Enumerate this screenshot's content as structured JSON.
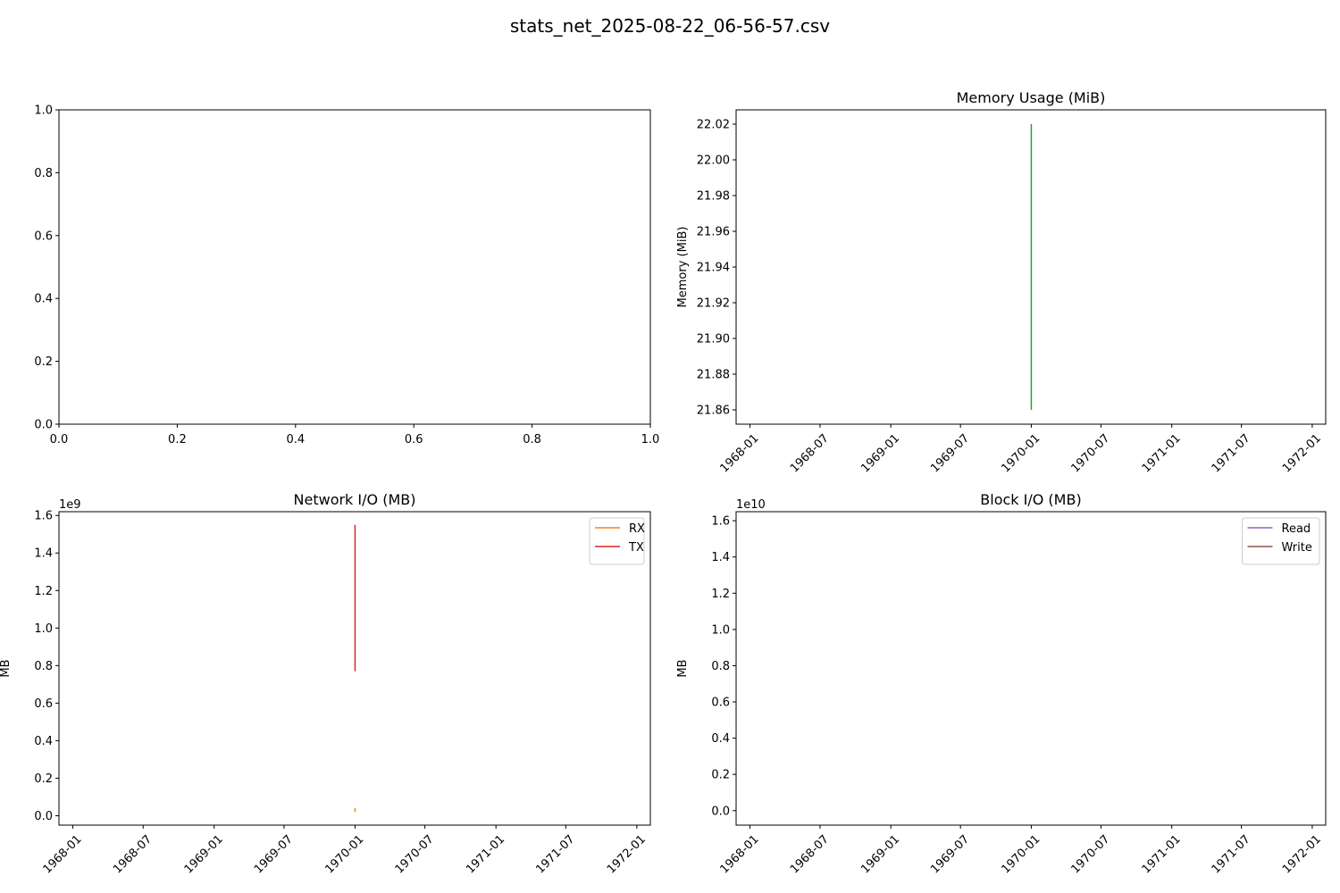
{
  "figure": {
    "suptitle": "stats_net_2025-08-22_06-56-57.csv"
  },
  "chart_data": [
    {
      "type": "line",
      "title": "",
      "xlabel": "",
      "ylabel": "",
      "xlim": [
        0,
        1
      ],
      "ylim": [
        0,
        1
      ],
      "x_ticks": [
        0.0,
        0.2,
        0.4,
        0.6,
        0.8,
        1.0
      ],
      "x_tick_labels": [
        "0.0",
        "0.2",
        "0.4",
        "0.6",
        "0.8",
        "1.0"
      ],
      "y_ticks": [
        0.0,
        0.2,
        0.4,
        0.6,
        0.8,
        1.0
      ],
      "y_tick_labels": [
        "0.0",
        "0.2",
        "0.4",
        "0.6",
        "0.8",
        "1.0"
      ],
      "series": []
    },
    {
      "type": "line",
      "title": "Memory Usage (MiB)",
      "xlabel": "",
      "ylabel": "Memory (MiB)",
      "x_is_date": true,
      "xlim": [
        "1967-11-26",
        "1972-02-05"
      ],
      "ylim": [
        21.852,
        22.028
      ],
      "x_ticks": [
        "1968-01-01",
        "1968-07-01",
        "1969-01-01",
        "1969-07-01",
        "1970-01-01",
        "1970-07-01",
        "1971-01-01",
        "1971-07-01",
        "1972-01-01"
      ],
      "x_tick_labels": [
        "1968-01",
        "1968-07",
        "1969-01",
        "1969-07",
        "1970-01",
        "1970-07",
        "1971-01",
        "1971-07",
        "1972-01"
      ],
      "y_ticks": [
        21.86,
        21.88,
        21.9,
        21.92,
        21.94,
        21.96,
        21.98,
        22.0,
        22.02
      ],
      "y_tick_labels": [
        "21.86",
        "21.88",
        "21.90",
        "21.92",
        "21.94",
        "21.96",
        "21.98",
        "22.00",
        "22.02"
      ],
      "series": [
        {
          "color": "#2ca02c",
          "x": [
            "1970-01-01",
            "1970-01-01"
          ],
          "y": [
            21.86,
            22.02
          ]
        }
      ]
    },
    {
      "type": "line",
      "title": "Network I/O (MB)",
      "xlabel": "",
      "ylabel": "MB",
      "y_offset_label": "1e9",
      "x_is_date": true,
      "xlim": [
        "1967-11-26",
        "1972-02-05"
      ],
      "ylim": [
        -0.05,
        1.62
      ],
      "x_ticks": [
        "1968-01-01",
        "1968-07-01",
        "1969-01-01",
        "1969-07-01",
        "1970-01-01",
        "1970-07-01",
        "1971-01-01",
        "1971-07-01",
        "1972-01-01"
      ],
      "x_tick_labels": [
        "1968-01",
        "1968-07",
        "1969-01",
        "1969-07",
        "1970-01",
        "1970-07",
        "1971-01",
        "1971-07",
        "1972-01"
      ],
      "y_ticks": [
        0.0,
        0.2,
        0.4,
        0.6,
        0.8,
        1.0,
        1.2,
        1.4,
        1.6
      ],
      "y_tick_labels": [
        "0.0",
        "0.2",
        "0.4",
        "0.6",
        "0.8",
        "1.0",
        "1.2",
        "1.4",
        "1.6"
      ],
      "legend_position": "top-right",
      "series": [
        {
          "name": "RX",
          "color": "#ff7f0e",
          "x": [
            "1970-01-01",
            "1970-01-01"
          ],
          "y": [
            0.02,
            0.04
          ]
        },
        {
          "name": "TX",
          "color": "#d62728",
          "x": [
            "1970-01-01",
            "1970-01-01"
          ],
          "y": [
            0.77,
            1.55
          ]
        }
      ]
    },
    {
      "type": "line",
      "title": "Block I/O (MB)",
      "xlabel": "",
      "ylabel": "MB",
      "y_offset_label": "1e10",
      "x_is_date": true,
      "xlim": [
        "1967-11-26",
        "1972-02-05"
      ],
      "ylim": [
        -0.08,
        1.65
      ],
      "x_ticks": [
        "1968-01-01",
        "1968-07-01",
        "1969-01-01",
        "1969-07-01",
        "1970-01-01",
        "1970-07-01",
        "1971-01-01",
        "1971-07-01",
        "1972-01-01"
      ],
      "x_tick_labels": [
        "1968-01",
        "1968-07",
        "1969-01",
        "1969-07",
        "1970-01",
        "1970-07",
        "1971-01",
        "1971-07",
        "1972-01"
      ],
      "y_ticks": [
        0.0,
        0.2,
        0.4,
        0.6,
        0.8,
        1.0,
        1.2,
        1.4,
        1.6
      ],
      "y_tick_labels": [
        "0.0",
        "0.2",
        "0.4",
        "0.6",
        "0.8",
        "1.0",
        "1.2",
        "1.4",
        "1.6"
      ],
      "legend_position": "top-right",
      "series": [
        {
          "name": "Read",
          "color": "#9467bd",
          "x": [],
          "y": []
        },
        {
          "name": "Write",
          "color": "#8c564b",
          "x": [],
          "y": []
        }
      ]
    }
  ]
}
